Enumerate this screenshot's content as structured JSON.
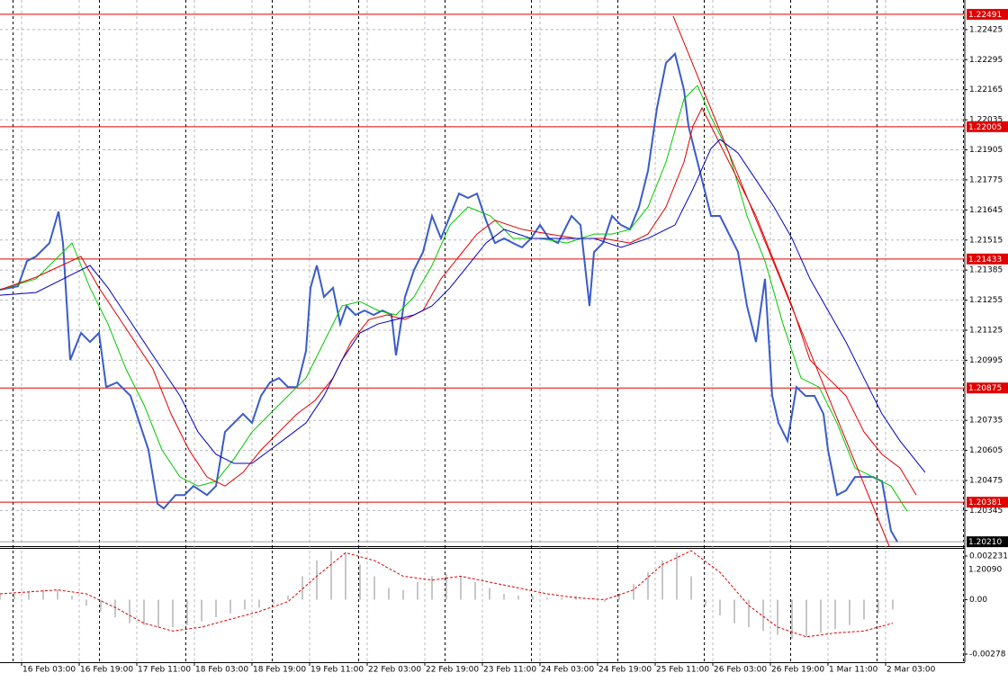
{
  "chart_data": [
    {
      "type": "line",
      "xlim": [
        0,
        268
      ],
      "ylim": [
        1.20191,
        1.22553
      ],
      "yticks": [
        1.22425,
        1.22295,
        1.22165,
        1.22035,
        1.21905,
        1.21775,
        1.21645,
        1.21515,
        1.21385,
        1.21255,
        1.21125,
        1.20995,
        1.20735,
        1.20605,
        1.20475,
        1.20345
      ],
      "bottom_label": "1.20090",
      "xticks": [
        {
          "value": 6,
          "label": "16 Feb 03:00"
        },
        {
          "value": 22,
          "label": "16 Feb 19:00"
        },
        {
          "value": 38,
          "label": "17 Feb 11:00"
        },
        {
          "value": 54,
          "label": "18 Feb 03:00"
        },
        {
          "value": 70,
          "label": "18 Feb 19:00"
        },
        {
          "value": 86,
          "label": "19 Feb 11:00"
        },
        {
          "value": 102,
          "label": "22 Feb 03:00"
        },
        {
          "value": 118,
          "label": "22 Feb 19:00"
        },
        {
          "value": 134,
          "label": "23 Feb 11:00"
        },
        {
          "value": 150,
          "label": "24 Feb 03:00"
        },
        {
          "value": 166,
          "label": "24 Feb 19:00"
        },
        {
          "value": 182,
          "label": "25 Feb 11:00"
        },
        {
          "value": 198,
          "label": "26 Feb 03:00"
        },
        {
          "value": 214,
          "label": "26 Feb 19:00"
        },
        {
          "value": 230,
          "label": "1 Mar 11:00"
        },
        {
          "value": 246,
          "label": "2 Mar 03:00"
        }
      ],
      "grid": true,
      "levels": [
        1.22491,
        1.22005,
        1.21433,
        1.20875,
        1.20381
      ],
      "level_color": "#e00000",
      "current_price": {
        "value": 1.2021,
        "label": "1.20210"
      },
      "trendline": {
        "x": [
          187,
          247
        ],
        "values": [
          1.22483,
          1.20191
        ],
        "color": "#e00000"
      },
      "series": [
        {
          "color": "#3a5cc8",
          "width": 2,
          "x": [
            0,
            5,
            7.5,
            10,
            13.75,
            16.25,
            17.5,
            19.5,
            22.5,
            25,
            27.5,
            29.5,
            32.5,
            36.25,
            38.75,
            41.25,
            43.75,
            45.5,
            48.75,
            51.25,
            53.75,
            57.5,
            60,
            62.5,
            65,
            67.5,
            70,
            72.5,
            75,
            77.5,
            80,
            82.5,
            85,
            86.25,
            88,
            90,
            92.5,
            94.5,
            96.25,
            98.75,
            101.25,
            103.75,
            106.25,
            108.75,
            110,
            112.5,
            115,
            117.5,
            120,
            122.5,
            125,
            127.5,
            130,
            132.5,
            135,
            137.5,
            140,
            142.5,
            145,
            147.5,
            150,
            152.5,
            155,
            158.75,
            161.25,
            162.5,
            163.75,
            165,
            167.5,
            170,
            172.5,
            175,
            177.5,
            180,
            182.5,
            185,
            187.5,
            190,
            191.25,
            192.5,
            195,
            197.5,
            200,
            202.5,
            205,
            207.5,
            210,
            212.5,
            214.5,
            216.25,
            218.75,
            221.25,
            223.75,
            226.25,
            228.75,
            230,
            232.5,
            235,
            237.5,
            240,
            242.5,
            245,
            247.5,
            249.25
          ],
          "values": [
            1.213,
            1.21315,
            1.21424,
            1.21444,
            1.21502,
            1.21638,
            1.21502,
            1.20996,
            1.21113,
            1.21074,
            1.21113,
            1.20879,
            1.20899,
            1.20841,
            1.20724,
            1.20607,
            1.20374,
            1.20354,
            1.20412,
            1.20412,
            1.20451,
            1.20412,
            1.20451,
            1.20685,
            1.20724,
            1.20763,
            1.20724,
            1.20841,
            1.20899,
            1.20918,
            1.20879,
            1.20879,
            1.21035,
            1.21308,
            1.21405,
            1.21269,
            1.21308,
            1.21152,
            1.2123,
            1.21191,
            1.2121,
            1.21191,
            1.2121,
            1.21191,
            1.21016,
            1.21269,
            1.21385,
            1.21463,
            1.21619,
            1.21522,
            1.21619,
            1.21716,
            1.21697,
            1.21716,
            1.216,
            1.21502,
            1.21522,
            1.21502,
            1.21483,
            1.21522,
            1.2158,
            1.21522,
            1.21502,
            1.21619,
            1.2158,
            1.21405,
            1.2123,
            1.21463,
            1.21502,
            1.21619,
            1.2158,
            1.21561,
            1.21658,
            1.21814,
            1.22086,
            1.22281,
            1.2232,
            1.22164,
            1.22008,
            1.2193,
            1.21775,
            1.21619,
            1.21619,
            1.21541,
            1.21463,
            1.2123,
            1.21074,
            1.21347,
            1.20841,
            1.20724,
            1.20646,
            1.20879,
            1.20841,
            1.20841,
            1.20763,
            1.20607,
            1.20412,
            1.20432,
            1.2049,
            1.2049,
            1.2049,
            1.20471,
            1.20257,
            1.2021
          ]
        },
        {
          "color": "#00c800",
          "width": 1,
          "x": [
            0,
            10,
            20,
            25,
            30,
            35,
            40,
            45,
            50,
            55,
            60,
            65,
            70,
            75,
            80,
            85,
            90,
            95,
            100,
            105,
            110,
            115,
            120,
            125,
            130,
            136.25,
            142.5,
            150,
            157.5,
            165,
            170,
            175,
            180,
            185,
            190,
            193.75,
            197.5,
            202.5,
            207.5,
            212.5,
            217.5,
            222.5,
            227.5,
            232.5,
            237.5,
            242.5,
            247.5,
            252
          ],
          "values": [
            1.213,
            1.21347,
            1.21502,
            1.21308,
            1.21152,
            1.20957,
            1.20802,
            1.20607,
            1.2049,
            1.20451,
            1.20471,
            1.20568,
            1.20685,
            1.20763,
            1.20841,
            1.20918,
            1.21074,
            1.2123,
            1.21249,
            1.2121,
            1.21191,
            1.21269,
            1.21405,
            1.2158,
            1.21658,
            1.21619,
            1.21522,
            1.21522,
            1.21502,
            1.21541,
            1.21541,
            1.21561,
            1.21658,
            1.21852,
            1.22125,
            1.22183,
            1.22047,
            1.21891,
            1.21619,
            1.21424,
            1.21152,
            1.20918,
            1.20879,
            1.20724,
            1.20529,
            1.2049,
            1.20451,
            1.20342
          ]
        },
        {
          "color": "#e00000",
          "width": 1,
          "x": [
            0,
            10,
            22.5,
            27.5,
            32.5,
            37.5,
            42.5,
            47.5,
            52.5,
            57.5,
            62.5,
            67.5,
            72.5,
            77.5,
            82.5,
            87.5,
            92.5,
            97.5,
            102.5,
            107.5,
            112.5,
            117.5,
            122.5,
            127.5,
            132.5,
            137.5,
            145,
            152.5,
            160,
            167.5,
            175,
            180,
            185,
            190,
            192.5,
            195,
            200,
            205,
            210,
            215,
            220,
            225,
            230,
            235,
            240,
            245,
            250,
            254.5
          ],
          "values": [
            1.213,
            1.21354,
            1.21444,
            1.21308,
            1.21191,
            1.21074,
            1.20957,
            1.20763,
            1.20607,
            1.2049,
            1.20451,
            1.2051,
            1.20607,
            1.20685,
            1.20763,
            1.20821,
            1.20918,
            1.21074,
            1.21171,
            1.21191,
            1.21171,
            1.2121,
            1.21347,
            1.21444,
            1.21541,
            1.216,
            1.21561,
            1.21541,
            1.21522,
            1.21522,
            1.21502,
            1.21541,
            1.21658,
            1.21852,
            1.22008,
            1.22086,
            1.2193,
            1.21775,
            1.21619,
            1.21424,
            1.2123,
            1.20996,
            1.20918,
            1.20841,
            1.20685,
            1.20588,
            1.20529,
            1.20412
          ]
        },
        {
          "color": "#0000c0",
          "width": 1,
          "x": [
            0,
            10,
            20,
            25,
            30,
            35,
            40,
            45,
            50,
            55,
            60,
            65,
            70,
            75,
            80,
            85,
            90,
            95,
            100,
            105,
            110,
            115,
            120,
            125,
            130,
            135,
            140,
            147.5,
            155,
            165,
            172.5,
            180,
            187.5,
            192.5,
            197.5,
            200,
            205,
            210,
            215,
            220,
            225,
            230,
            235,
            240,
            245,
            250,
            257
          ],
          "values": [
            1.21276,
            1.21288,
            1.21366,
            1.21405,
            1.21308,
            1.21191,
            1.21074,
            1.20957,
            1.20841,
            1.20685,
            1.20588,
            1.20549,
            1.20549,
            1.20607,
            1.20665,
            1.20724,
            1.20841,
            1.20996,
            1.21113,
            1.21152,
            1.21171,
            1.21191,
            1.2123,
            1.21308,
            1.21405,
            1.21502,
            1.21561,
            1.21522,
            1.21522,
            1.21522,
            1.21483,
            1.21522,
            1.2158,
            1.21736,
            1.21911,
            1.2195,
            1.21891,
            1.21775,
            1.21658,
            1.21522,
            1.21347,
            1.2121,
            1.21074,
            1.20918,
            1.20763,
            1.20646,
            1.2051
          ]
        }
      ]
    },
    {
      "type": "bar",
      "xlim": [
        0,
        268
      ],
      "ylim": [
        -0.003194,
        0.002599
      ],
      "yticks": [
        0.002231,
        {
          "value": 0,
          "label": "0.00"
        },
        -0.00278
      ],
      "series": [
        {
          "style": "bar",
          "color": "#b4b4b4",
          "x": [
            0,
            4,
            8,
            12,
            16,
            20,
            24,
            28,
            32,
            36,
            40,
            44,
            48,
            52,
            56,
            60,
            64,
            68,
            72,
            76,
            80,
            84,
            88,
            92,
            96,
            100,
            104,
            108,
            112,
            116,
            120,
            124,
            128,
            132,
            136,
            140,
            144,
            148,
            152,
            156,
            160,
            164,
            168,
            172,
            176,
            180,
            184,
            188,
            192,
            196,
            200,
            204,
            208,
            212,
            216,
            220,
            224,
            228,
            232,
            236,
            240,
            244,
            248
          ],
          "values": [
            0.0003,
            0.0003,
            0.0004,
            0.0005,
            0.0005,
            0.0002,
            -0.0003,
            -0.0006,
            -0.0009,
            -0.0012,
            -0.0013,
            -0.0014,
            -0.0014,
            -0.0013,
            -0.0011,
            -0.0009,
            -0.0007,
            -0.0005,
            -0.0004,
            -0.0002,
            0.0002,
            0.0012,
            0.002,
            0.0025,
            0.0024,
            0.0018,
            0.0012,
            0.0006,
            0.0005,
            0.0009,
            0.0012,
            0.0013,
            0.0012,
            0.0009,
            0.0006,
            0.0003,
            0.0002,
            0.0002,
            0.0001,
            0.0001,
            0.0002,
            0,
            -0.0001,
            0.0003,
            0.0008,
            0.0014,
            0.002,
            0.0024,
            0.0012,
            -0.0003,
            -0.0008,
            -0.0012,
            -0.0014,
            -0.0016,
            -0.0018,
            -0.002,
            -0.0019,
            -0.0017,
            -0.0015,
            -0.0013,
            -0.001,
            -0.0007,
            -0.0005
          ]
        },
        {
          "style": "dashed",
          "color": "#e00000",
          "x": [
            0,
            8,
            16,
            24,
            32,
            40,
            48,
            56,
            64,
            72,
            80,
            88,
            96,
            104,
            112,
            120,
            128,
            136,
            144,
            152,
            160,
            168,
            176,
            184,
            192,
            200,
            208,
            216,
            224,
            232,
            240,
            248
          ],
          "values": [
            0.0003,
            0.0004,
            0.0005,
            0.0003,
            -0.0004,
            -0.0012,
            -0.0016,
            -0.0014,
            -0.001,
            -0.0006,
            -0.0001,
            0.0012,
            0.0024,
            0.002,
            0.0012,
            0.001,
            0.0012,
            0.0009,
            0.0006,
            0.0003,
            0.0001,
            0,
            0.0005,
            0.0018,
            0.0025,
            0.0014,
            -0.0003,
            -0.0014,
            -0.0019,
            -0.0017,
            -0.0016,
            -0.0012
          ]
        }
      ]
    }
  ]
}
